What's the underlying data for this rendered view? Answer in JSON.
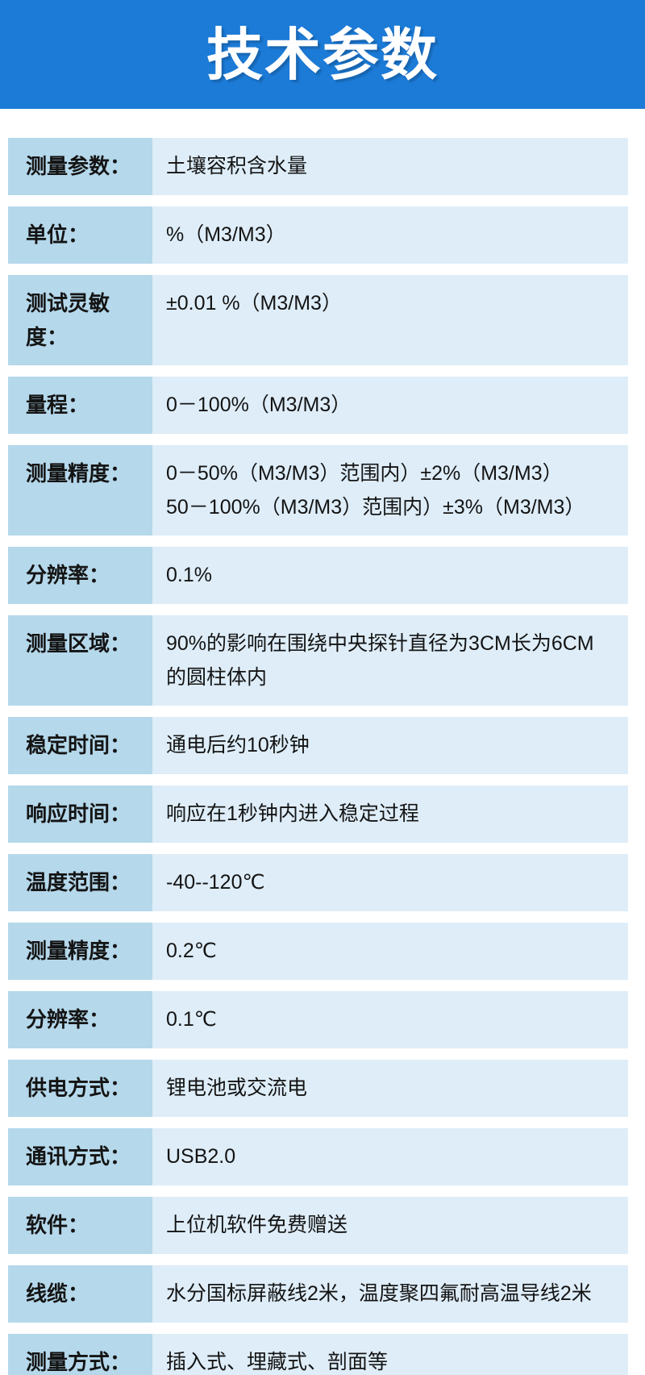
{
  "page": {
    "title": "技术参数"
  },
  "colors": {
    "header_bg": "#1c7bd7",
    "label_bg": "#b5d8eb",
    "value_bg": "#deedf8",
    "text": "#141414",
    "page_bg": "#ffffff"
  },
  "spec_table": {
    "rows": [
      {
        "label": "测量参数：",
        "value_lines": [
          "土壤容积含水量"
        ]
      },
      {
        "label": "单位：",
        "value_lines": [
          "%（M3/M3）"
        ]
      },
      {
        "label": "测试灵敏度：",
        "value_lines": [
          "±0.01 %（M3/M3）"
        ]
      },
      {
        "label": "量程：",
        "value_lines": [
          "0－100%（M3/M3）"
        ]
      },
      {
        "label": "测量精度：",
        "value_lines": [
          "0－50%（M3/M3）范围内）±2%（M3/M3）",
          "50－100%（M3/M3）范围内）±3%（M3/M3）"
        ]
      },
      {
        "label": "分辨率：",
        "value_lines": [
          "0.1%"
        ]
      },
      {
        "label": "测量区域：",
        "value_lines": [
          "90%的影响在围绕中央探针直径为3CM长为6CM",
          "的圆柱体内"
        ]
      },
      {
        "label": "稳定时间：",
        "value_lines": [
          "通电后约10秒钟"
        ]
      },
      {
        "label": "响应时间：",
        "value_lines": [
          "响应在1秒钟内进入稳定过程"
        ]
      },
      {
        "label": "温度范围：",
        "value_lines": [
          "-40--120℃"
        ]
      },
      {
        "label": "测量精度：",
        "value_lines": [
          "0.2℃"
        ]
      },
      {
        "label": "分辨率：",
        "value_lines": [
          "0.1℃"
        ]
      },
      {
        "label": "供电方式：",
        "value_lines": [
          "锂电池或交流电"
        ]
      },
      {
        "label": "通讯方式：",
        "value_lines": [
          "USB2.0"
        ]
      },
      {
        "label": "软件：",
        "value_lines": [
          "上位机软件免费赠送"
        ]
      },
      {
        "label": "线缆：",
        "value_lines": [
          "水分国标屏蔽线2米，温度聚四氟耐高温导线2米"
        ]
      },
      {
        "label": "测量方式：",
        "value_lines": [
          "插入式、埋藏式、剖面等"
        ]
      }
    ]
  }
}
